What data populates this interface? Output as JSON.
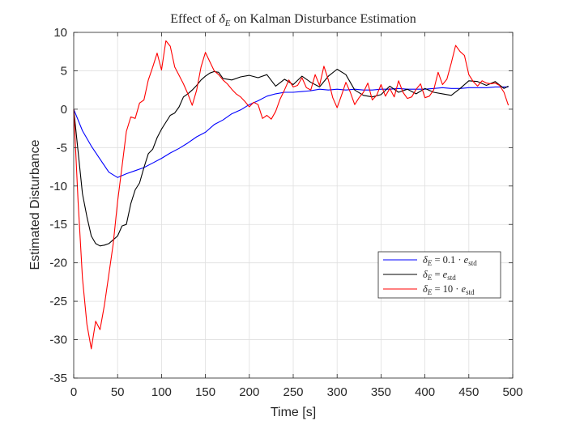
{
  "chart_data": {
    "type": "line",
    "title_prefix": "Effect of ",
    "title_symbol": "δ",
    "title_subscript": "E",
    "title_suffix": " on Kalman Disturbance Estimation",
    "xlabel": "Time [s]",
    "ylabel": "Estimated Disturbance",
    "xlim": [
      0,
      500
    ],
    "ylim": [
      -35,
      10
    ],
    "xticks": [
      "0",
      "50",
      "100",
      "150",
      "200",
      "250",
      "300",
      "350",
      "400",
      "450",
      "500"
    ],
    "yticks": [
      "10",
      "5",
      "0",
      "-5",
      "-10",
      "-15",
      "-20",
      "-25",
      "-30",
      "-35"
    ],
    "grid": true,
    "legend_position": "lower-right",
    "series": [
      {
        "name": "δE = 0.1 · estd",
        "label_value": "0.1 · ",
        "color": "#0000ff",
        "x": [
          0,
          10,
          20,
          30,
          40,
          50,
          60,
          70,
          80,
          90,
          100,
          110,
          120,
          130,
          140,
          150,
          160,
          170,
          180,
          190,
          200,
          210,
          220,
          230,
          240,
          250,
          260,
          270,
          280,
          290,
          300,
          310,
          320,
          330,
          340,
          350,
          360,
          370,
          380,
          390,
          400,
          410,
          420,
          430,
          440,
          450,
          460,
          470,
          480,
          490,
          495
        ],
        "y": [
          0,
          -2.8,
          -4.8,
          -6.5,
          -8.2,
          -8.9,
          -8.4,
          -8.0,
          -7.6,
          -7.0,
          -6.4,
          -5.7,
          -5.1,
          -4.4,
          -3.6,
          -3.0,
          -2.0,
          -1.4,
          -0.6,
          -0.1,
          0.6,
          1.1,
          1.7,
          2.0,
          2.2,
          2.2,
          2.3,
          2.4,
          2.6,
          2.5,
          2.6,
          2.5,
          2.6,
          2.5,
          2.5,
          2.6,
          2.6,
          2.7,
          2.6,
          2.6,
          2.6,
          2.7,
          2.8,
          2.7,
          2.7,
          2.8,
          2.8,
          2.8,
          2.9,
          2.9,
          2.9
        ]
      },
      {
        "name": "δE = estd",
        "label_value": "",
        "color": "#000000",
        "x": [
          0,
          5,
          10,
          15,
          20,
          25,
          30,
          35,
          40,
          45,
          50,
          55,
          60,
          65,
          70,
          75,
          80,
          85,
          90,
          95,
          100,
          105,
          110,
          115,
          120,
          125,
          130,
          135,
          140,
          145,
          150,
          155,
          160,
          165,
          170,
          180,
          190,
          200,
          210,
          220,
          230,
          240,
          250,
          260,
          270,
          280,
          290,
          300,
          310,
          320,
          330,
          340,
          350,
          360,
          370,
          380,
          390,
          400,
          410,
          420,
          430,
          440,
          450,
          460,
          470,
          480,
          490,
          495
        ],
        "y": [
          0,
          -5.5,
          -11,
          -14,
          -16.5,
          -17.5,
          -17.8,
          -17.7,
          -17.5,
          -17.0,
          -16.5,
          -15.2,
          -15.0,
          -12.3,
          -10.5,
          -9.6,
          -7.6,
          -5.8,
          -5.2,
          -3.7,
          -2.6,
          -1.7,
          -0.8,
          -0.5,
          0.3,
          1.6,
          2.0,
          2.5,
          3.1,
          3.8,
          4.3,
          4.7,
          4.9,
          4.8,
          4.0,
          3.8,
          4.2,
          4.4,
          4.1,
          4.5,
          3.0,
          3.9,
          3.2,
          4.3,
          3.5,
          2.9,
          4.3,
          5.2,
          4.5,
          2.5,
          1.8,
          1.6,
          1.9,
          3.0,
          2.2,
          2.6,
          2.0,
          2.7,
          2.2,
          2.0,
          1.8,
          2.7,
          3.7,
          3.6,
          3.1,
          3.6,
          2.7,
          3.0
        ]
      },
      {
        "name": "δE = 10 · estd",
        "label_value": "10 · ",
        "color": "#ff0000",
        "x": [
          0,
          5,
          10,
          15,
          20,
          25,
          30,
          35,
          40,
          45,
          50,
          55,
          60,
          65,
          70,
          75,
          80,
          85,
          90,
          95,
          100,
          105,
          110,
          115,
          120,
          125,
          130,
          135,
          140,
          145,
          150,
          155,
          160,
          165,
          170,
          175,
          180,
          185,
          190,
          195,
          200,
          205,
          210,
          215,
          220,
          225,
          230,
          235,
          240,
          245,
          250,
          255,
          260,
          265,
          270,
          275,
          280,
          285,
          290,
          295,
          300,
          305,
          310,
          315,
          320,
          325,
          330,
          335,
          340,
          345,
          350,
          355,
          360,
          365,
          370,
          375,
          380,
          385,
          390,
          395,
          400,
          405,
          410,
          415,
          420,
          425,
          430,
          435,
          440,
          445,
          450,
          455,
          460,
          465,
          470,
          475,
          480,
          485,
          490,
          495
        ],
        "y": [
          0,
          -12,
          -22,
          -28,
          -31.2,
          -27.6,
          -28.7,
          -25.5,
          -21.5,
          -17.5,
          -12.0,
          -7.5,
          -2.9,
          -1.0,
          -1.2,
          0.8,
          1.2,
          3.8,
          5.5,
          7.3,
          5.1,
          8.9,
          8.2,
          5.5,
          4.4,
          3.3,
          2.0,
          0.5,
          2.5,
          5.5,
          7.4,
          6.2,
          5.0,
          4.5,
          3.8,
          3.3,
          2.6,
          2.0,
          1.6,
          1.0,
          0.3,
          0.9,
          0.6,
          -1.2,
          -0.8,
          -1.3,
          -0.3,
          1.3,
          2.5,
          3.8,
          2.9,
          3.1,
          4.1,
          2.8,
          2.5,
          4.5,
          3.1,
          5.6,
          3.8,
          1.5,
          0.2,
          1.8,
          3.5,
          2.2,
          0.6,
          1.5,
          2.2,
          3.4,
          1.2,
          1.8,
          3.2,
          1.7,
          2.7,
          1.6,
          3.7,
          2.2,
          1.4,
          1.6,
          2.6,
          3.3,
          1.5,
          1.7,
          2.5,
          4.8,
          3.2,
          3.9,
          6.0,
          8.3,
          7.5,
          7.0,
          4.5,
          3.6,
          3.0,
          3.7,
          3.4,
          3.3,
          3.4,
          3.1,
          2.2,
          0.5
        ]
      }
    ]
  },
  "legend": {
    "symbol": "δ",
    "subscript": "E",
    "equals": " = ",
    "e": "e",
    "e_sub": "std"
  }
}
